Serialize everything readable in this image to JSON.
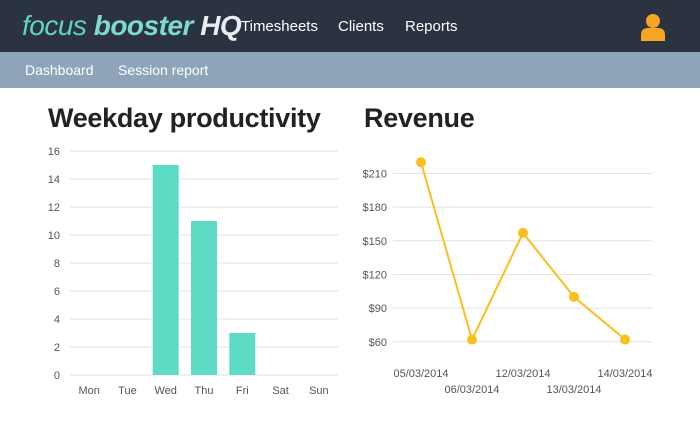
{
  "header": {
    "logo_part1": "focus",
    "logo_part2": "booster",
    "logo_part3": "HQ",
    "nav": [
      "Timesheets",
      "Clients",
      "Reports"
    ],
    "user_icon": "user-icon",
    "user_icon_color": "#f5a623"
  },
  "subnav": [
    "Dashboard",
    "Session report"
  ],
  "charts": {
    "productivity_title": "Weekday productivity",
    "revenue_title": "Revenue"
  },
  "chart_data": [
    {
      "type": "bar",
      "title": "Weekday productivity",
      "categories": [
        "Mon",
        "Tue",
        "Wed",
        "Thu",
        "Fri",
        "Sat",
        "Sun"
      ],
      "values": [
        0,
        0,
        15,
        11,
        3,
        0,
        0
      ],
      "ylim": [
        0,
        16
      ],
      "yticks": [
        0,
        2,
        4,
        6,
        8,
        10,
        12,
        14,
        16
      ],
      "ytick_labels": [
        "0",
        "2",
        "4",
        "6",
        "8",
        "10",
        "12",
        "14",
        "16"
      ],
      "color": "#5ddbc5",
      "grid": true
    },
    {
      "type": "line",
      "title": "Revenue",
      "categories": [
        "05/03/2014",
        "06/03/2014",
        "12/03/2014",
        "13/03/2014",
        "14/03/2014"
      ],
      "values": [
        220,
        62,
        157,
        100,
        62
      ],
      "ylim": [
        50,
        230
      ],
      "yticks": [
        60,
        90,
        120,
        150,
        180,
        210
      ],
      "ytick_labels": [
        "$60",
        "$90",
        "$120",
        "$150",
        "$180",
        "$210"
      ],
      "color": "#f9bf1c",
      "grid": true
    }
  ]
}
